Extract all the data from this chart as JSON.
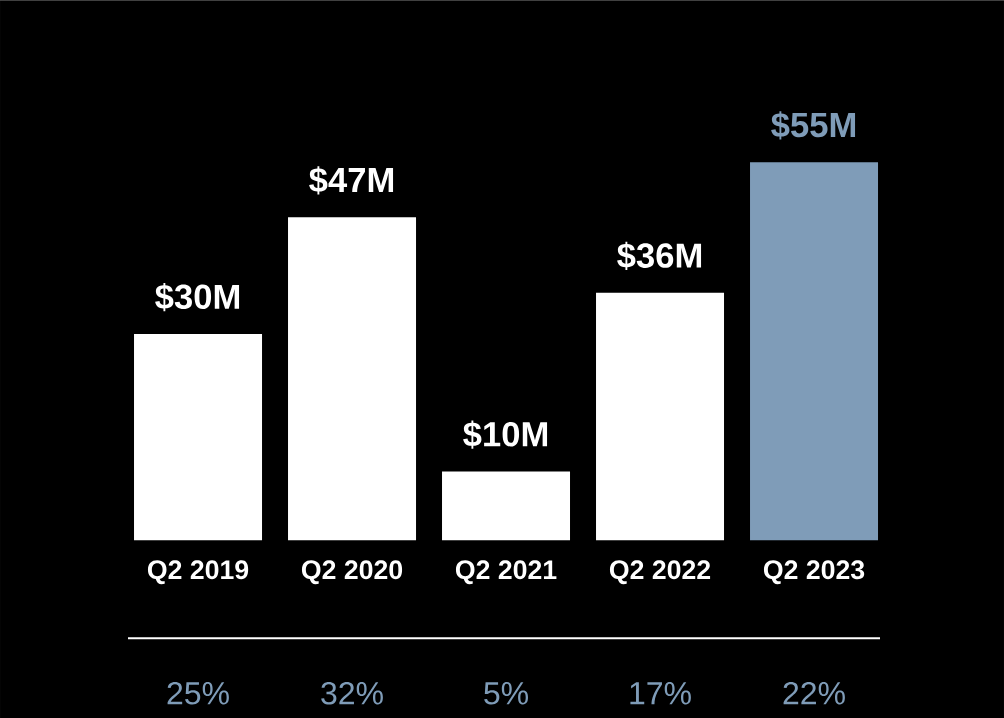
{
  "chart_data": {
    "type": "bar",
    "categories": [
      "Q2 2019",
      "Q2 2020",
      "Q2 2021",
      "Q2 2022",
      "Q2 2023"
    ],
    "values": [
      30,
      47,
      10,
      36,
      55
    ],
    "colors": [
      "#ffffff",
      "#ffffff",
      "#ffffff",
      "#ffffff",
      "#7f9cb8"
    ],
    "value_labels": [
      "$30M",
      "$47M",
      "$10M",
      "$36M",
      "$55M"
    ],
    "annotations": [
      "25%",
      "32%",
      "5%",
      "17%",
      "22%"
    ],
    "tick_labels": "x"
  }
}
